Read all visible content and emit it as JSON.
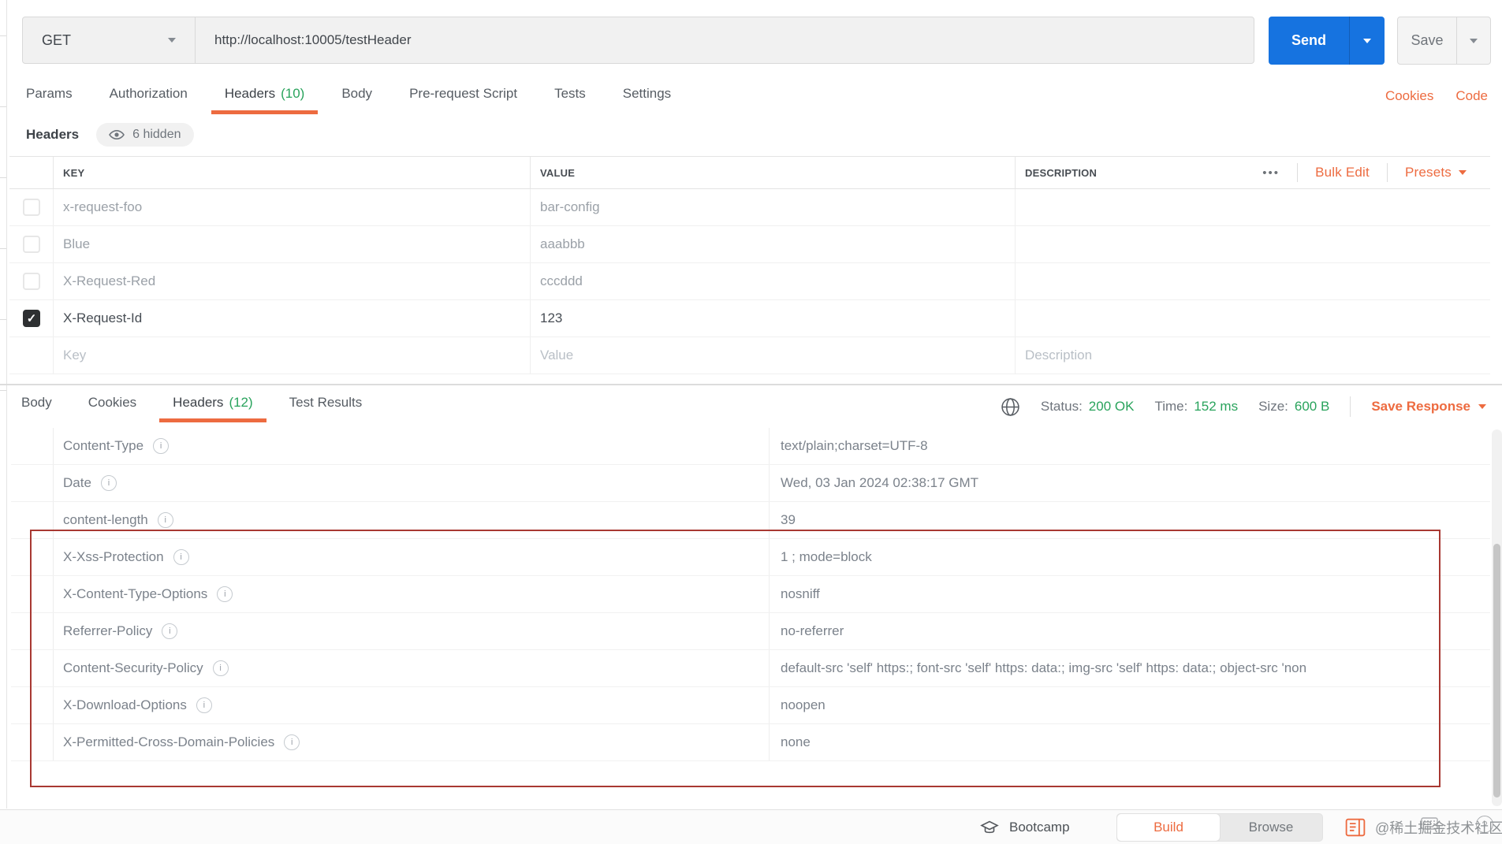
{
  "colors": {
    "accent_orange": "#ED6B40",
    "send_blue": "#1673E0",
    "success_green": "#29A35C",
    "annotation_red": "#A83832"
  },
  "icons": {
    "chevron_down": "css-triangle",
    "checkmark": "✓",
    "eye": "svg-eye",
    "more_options": "•••",
    "info": "i",
    "globe": "svg-globe",
    "graduation_cap": "svg-cap",
    "console": "svg-console",
    "keyboard": "svg-keyboard",
    "help": "?"
  },
  "request": {
    "method": "GET",
    "url": "http://localhost:10005/testHeader",
    "send_label": "Send",
    "save_label": "Save",
    "tabs": [
      {
        "label": "Params"
      },
      {
        "label": "Authorization"
      },
      {
        "label": "Headers",
        "count": "(10)",
        "active": true
      },
      {
        "label": "Body"
      },
      {
        "label": "Pre-request Script"
      },
      {
        "label": "Tests"
      },
      {
        "label": "Settings"
      }
    ],
    "cookies_link": "Cookies",
    "code_link": "Code",
    "headers_editor": {
      "title": "Headers",
      "hidden_badge": "6 hidden",
      "columns": {
        "key": "KEY",
        "value": "VALUE",
        "description": "DESCRIPTION"
      },
      "actions": {
        "more": "•••",
        "bulk_edit": "Bulk Edit",
        "presets": "Presets"
      },
      "rows": [
        {
          "key": "x-request-foo",
          "value": "bar-config",
          "checked": false
        },
        {
          "key": "Blue",
          "value": "aaabbb",
          "checked": false
        },
        {
          "key": "X-Request-Red",
          "value": "cccddd",
          "checked": false
        },
        {
          "key": "X-Request-Id",
          "value": "123",
          "checked": true
        }
      ],
      "placeholder_row": {
        "key": "Key",
        "value": "Value",
        "description": "Description"
      }
    }
  },
  "response": {
    "tabs": [
      {
        "label": "Body"
      },
      {
        "label": "Cookies"
      },
      {
        "label": "Headers",
        "count": "(12)",
        "active": true
      },
      {
        "label": "Test Results"
      }
    ],
    "meta": {
      "status_label": "Status:",
      "status_value": "200 OK",
      "time_label": "Time:",
      "time_value": "152 ms",
      "size_label": "Size:",
      "size_value": "600 B",
      "save_response_label": "Save Response"
    },
    "headers": [
      {
        "key": "Content-Type",
        "value": "text/plain;charset=UTF-8"
      },
      {
        "key": "Date",
        "value": "Wed, 03 Jan 2024 02:38:17 GMT"
      },
      {
        "key": "content-length",
        "value": "39"
      },
      {
        "key": "X-Xss-Protection",
        "value": "1 ; mode=block"
      },
      {
        "key": "X-Content-Type-Options",
        "value": "nosniff"
      },
      {
        "key": "Referrer-Policy",
        "value": "no-referrer"
      },
      {
        "key": "Content-Security-Policy",
        "value": "default-src 'self' https:; font-src 'self' https: data:; img-src 'self' https: data:; object-src 'non"
      },
      {
        "key": "X-Download-Options",
        "value": "noopen"
      },
      {
        "key": "X-Permitted-Cross-Domain-Policies",
        "value": "none"
      }
    ]
  },
  "footer": {
    "bootcamp": "Bootcamp",
    "build": "Build",
    "browse": "Browse",
    "watermark": "@稀土掘金技术社区"
  }
}
